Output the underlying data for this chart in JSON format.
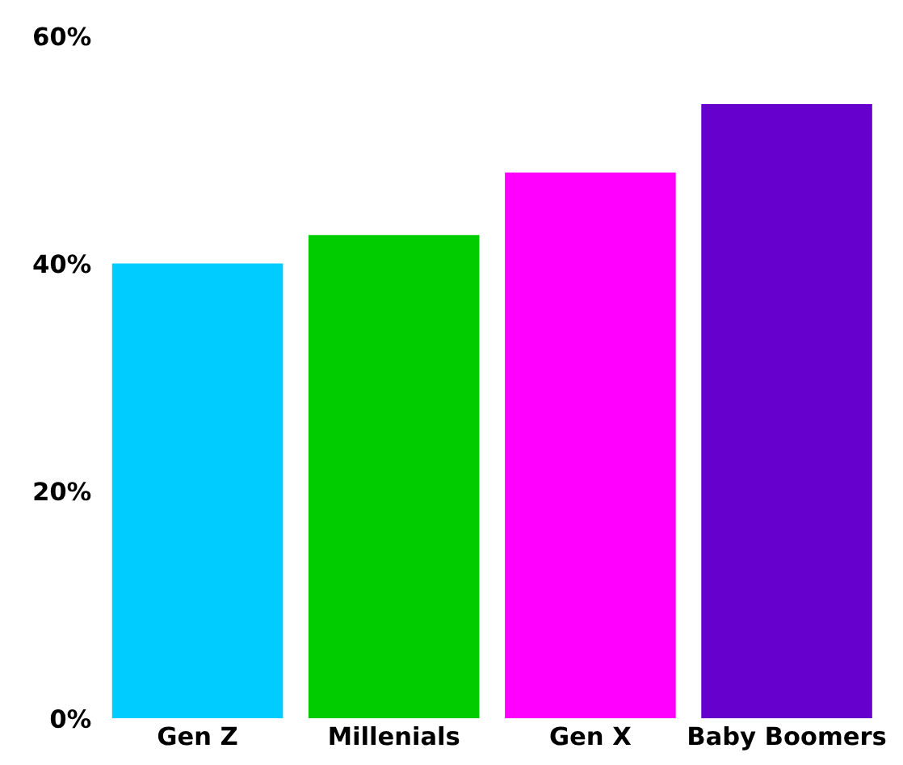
{
  "chart_data": {
    "type": "bar",
    "categories": [
      "Gen Z",
      "Millenials",
      "Gen X",
      "Baby Boomers"
    ],
    "values": [
      40,
      42.5,
      48,
      54
    ],
    "colors": [
      "#00ccff",
      "#00cc00",
      "#ff00ff",
      "#6600cc"
    ],
    "ylim": [
      0,
      60
    ],
    "yticks": [
      {
        "value": 0,
        "label": "0%"
      },
      {
        "value": 20,
        "label": "20%"
      },
      {
        "value": 40,
        "label": "40%"
      },
      {
        "value": 60,
        "label": "60%"
      }
    ],
    "grid": false,
    "legend": false
  }
}
